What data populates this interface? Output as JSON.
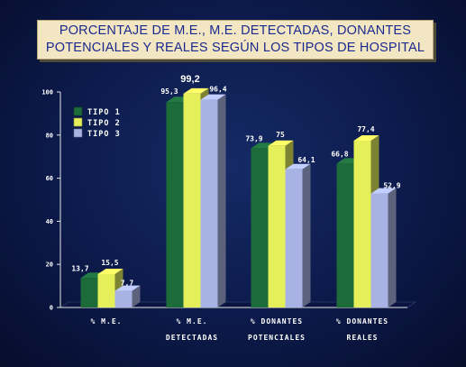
{
  "title": {
    "line1": "PORCENTAJE DE M.E., M.E. DETECTADAS, DONANTES",
    "line2": "POTENCIALES Y REALES SEGÚN LOS TIPOS DE HOSPITAL"
  },
  "chart_data": {
    "type": "bar",
    "title": "PORCENTAJE DE M.E., M.E. DETECTADAS, DONANTES POTENCIALES Y REALES SEGÚN LOS TIPOS DE HOSPITAL",
    "categories": [
      [
        "% M.E.",
        ""
      ],
      [
        "% M.E.",
        "DETECTADAS"
      ],
      [
        "% DONANTES",
        "POTENCIALES"
      ],
      [
        "% DONANTES",
        "REALES"
      ]
    ],
    "series": [
      {
        "name": "TIPO 1",
        "values": [
          13.7,
          95.3,
          73.9,
          66.8
        ],
        "labels": [
          "13,7",
          "95,3",
          "73,9",
          "66,8"
        ],
        "color": "#1e6b3a"
      },
      {
        "name": "TIPO 2",
        "values": [
          15.5,
          99.2,
          75,
          77.4
        ],
        "labels": [
          "15,5",
          "99,2",
          "75",
          "77,4"
        ],
        "color": "#e4ef5a"
      },
      {
        "name": "TIPO 3",
        "values": [
          7.7,
          96.4,
          64.1,
          52.9
        ],
        "labels": [
          "7,7",
          "96,4",
          "64,1",
          "52,9"
        ],
        "color": "#a9b3e3"
      }
    ],
    "yticks": [
      0,
      20,
      40,
      60,
      80,
      100
    ],
    "ylim": [
      0,
      100
    ],
    "legend_position": "top-left",
    "grid": false
  }
}
